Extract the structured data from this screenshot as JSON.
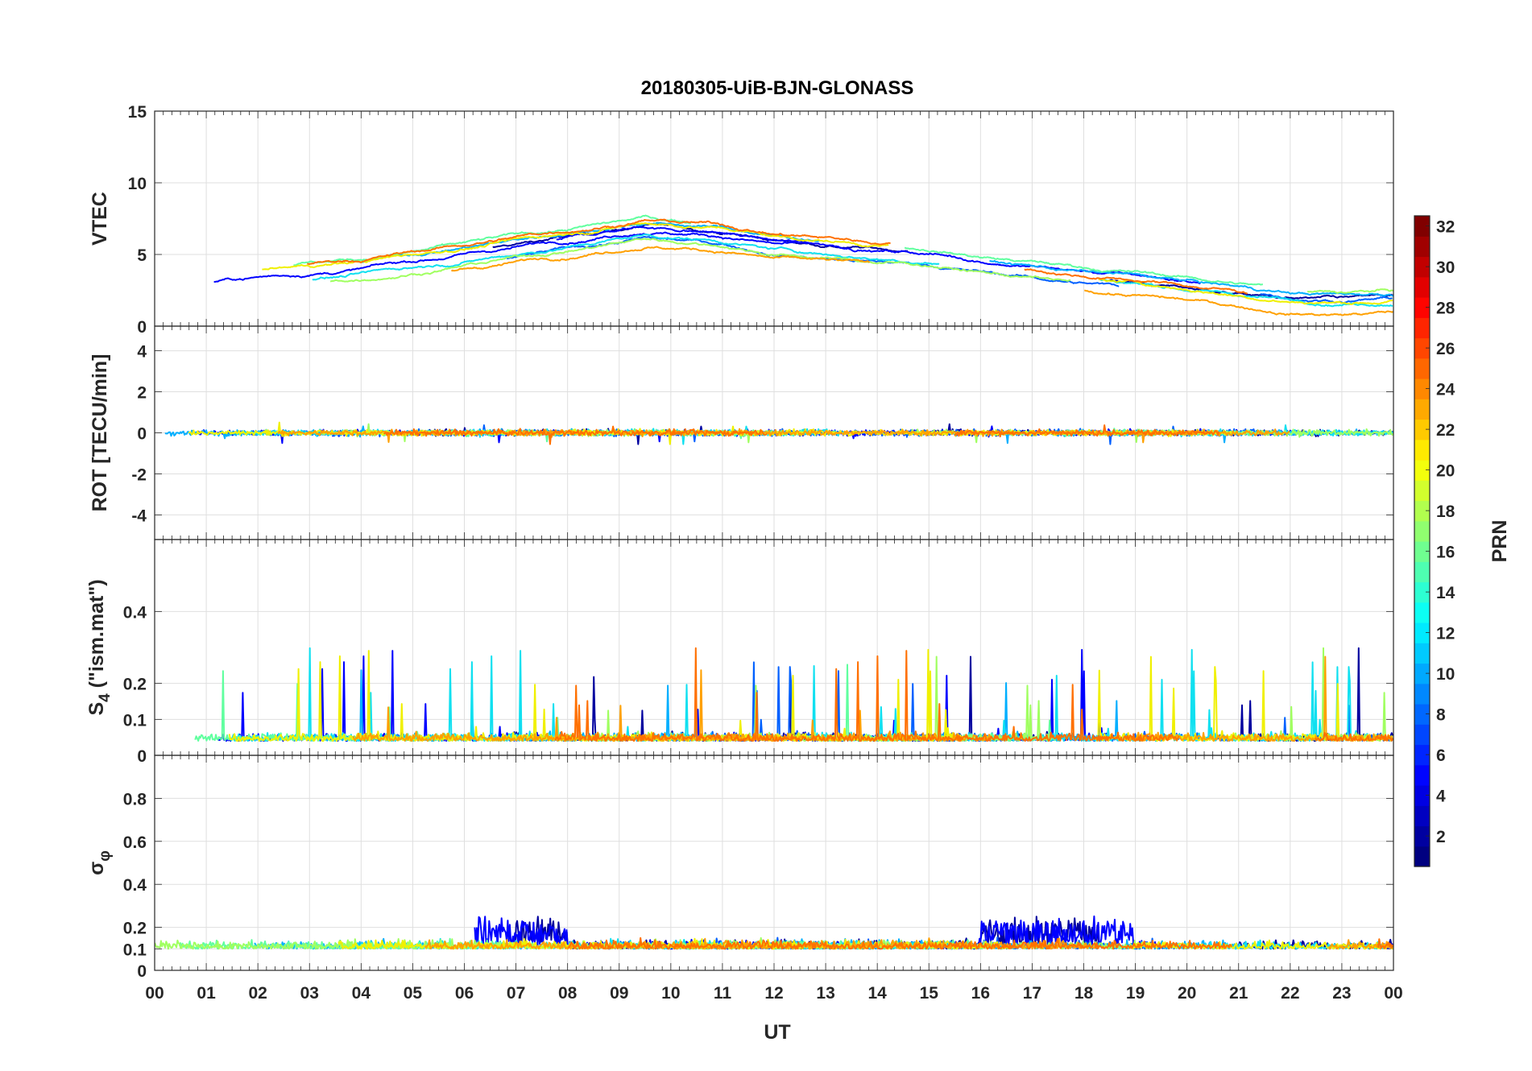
{
  "chart_data": {
    "type": "line",
    "title": "20180305-UiB-BJN-GLONASS",
    "xlabel": "UT",
    "x_ticks": [
      "00",
      "01",
      "02",
      "03",
      "04",
      "05",
      "06",
      "07",
      "08",
      "09",
      "10",
      "11",
      "12",
      "13",
      "14",
      "15",
      "16",
      "17",
      "18",
      "19",
      "20",
      "21",
      "22",
      "23",
      "00"
    ],
    "xlim_hours": [
      0,
      24
    ],
    "grid": true,
    "colorbar": {
      "label": "PRN",
      "colormap": "jet",
      "range": [
        1,
        32
      ],
      "ticks": [
        "2",
        "4",
        "6",
        "8",
        "10",
        "12",
        "14",
        "16",
        "18",
        "20",
        "22",
        "24",
        "26",
        "28",
        "30",
        "32"
      ]
    },
    "panels": [
      {
        "id": "vtec",
        "ylabel": "VTEC",
        "ylim": [
          0,
          15
        ],
        "y_ticks": [
          0,
          5,
          10,
          15
        ],
        "y_tick_labels": [
          "0",
          "5",
          "10",
          "15"
        ],
        "profile": {
          "description_free": true,
          "hours": [
            0,
            2,
            4,
            6,
            8,
            9.5,
            11,
            12,
            13,
            14,
            15,
            16,
            17,
            18,
            19,
            20,
            21,
            22,
            23,
            24
          ],
          "values": [
            2.5,
            3.2,
            3.8,
            4.8,
            5.8,
            6.6,
            6.2,
            5.6,
            5.3,
            5.0,
            4.8,
            4.3,
            3.9,
            3.5,
            3.2,
            2.8,
            2.4,
            2.0,
            1.9,
            2.0
          ]
        }
      },
      {
        "id": "rot",
        "ylabel": "ROT [TECU/min]",
        "ylim": [
          -5.2,
          5.2
        ],
        "y_ticks": [
          -4,
          -2,
          0,
          2,
          4
        ],
        "y_tick_labels": [
          "-4",
          "-2",
          "0",
          "2",
          "4"
        ],
        "profile": {
          "hours": [
            0,
            24
          ],
          "values": [
            0,
            0
          ]
        }
      },
      {
        "id": "s4",
        "ylabel_main": "S",
        "ylabel_sub": "4",
        "ylabel_rest": " (\"ism.mat\")",
        "ylim": [
          0,
          0.6
        ],
        "y_ticks": [
          0,
          0.1,
          0.2,
          0.4
        ],
        "y_tick_labels": [
          "0",
          "0.1",
          "0.2",
          "0.4"
        ],
        "profile": {
          "hours": [
            0,
            24
          ],
          "values": [
            0.06,
            0.06
          ]
        }
      },
      {
        "id": "sigma",
        "ylabel_main": "σ",
        "ylabel_sub": "φ",
        "ylim": [
          0,
          1
        ],
        "y_ticks": [
          0,
          0.1,
          0.2,
          0.4,
          0.6,
          0.8
        ],
        "y_tick_labels": [
          "0",
          "0.1",
          "0.2",
          "0.4",
          "0.6",
          "0.8"
        ],
        "profile": {
          "hours": [
            0,
            24
          ],
          "values": [
            0.12,
            0.12
          ]
        }
      }
    ],
    "series": [
      {
        "prn": 2,
        "color": "#00009f"
      },
      {
        "prn": 4,
        "color": "#0000ff"
      },
      {
        "prn": 7,
        "color": "#0060ff"
      },
      {
        "prn": 10,
        "color": "#00afff"
      },
      {
        "prn": 12,
        "color": "#10e0f0"
      },
      {
        "prn": 15,
        "color": "#60ff9f"
      },
      {
        "prn": 17,
        "color": "#a0ff60"
      },
      {
        "prn": 20,
        "color": "#f0f000"
      },
      {
        "prn": 23,
        "color": "#ffa000"
      },
      {
        "prn": 24,
        "color": "#ff7000"
      }
    ]
  }
}
